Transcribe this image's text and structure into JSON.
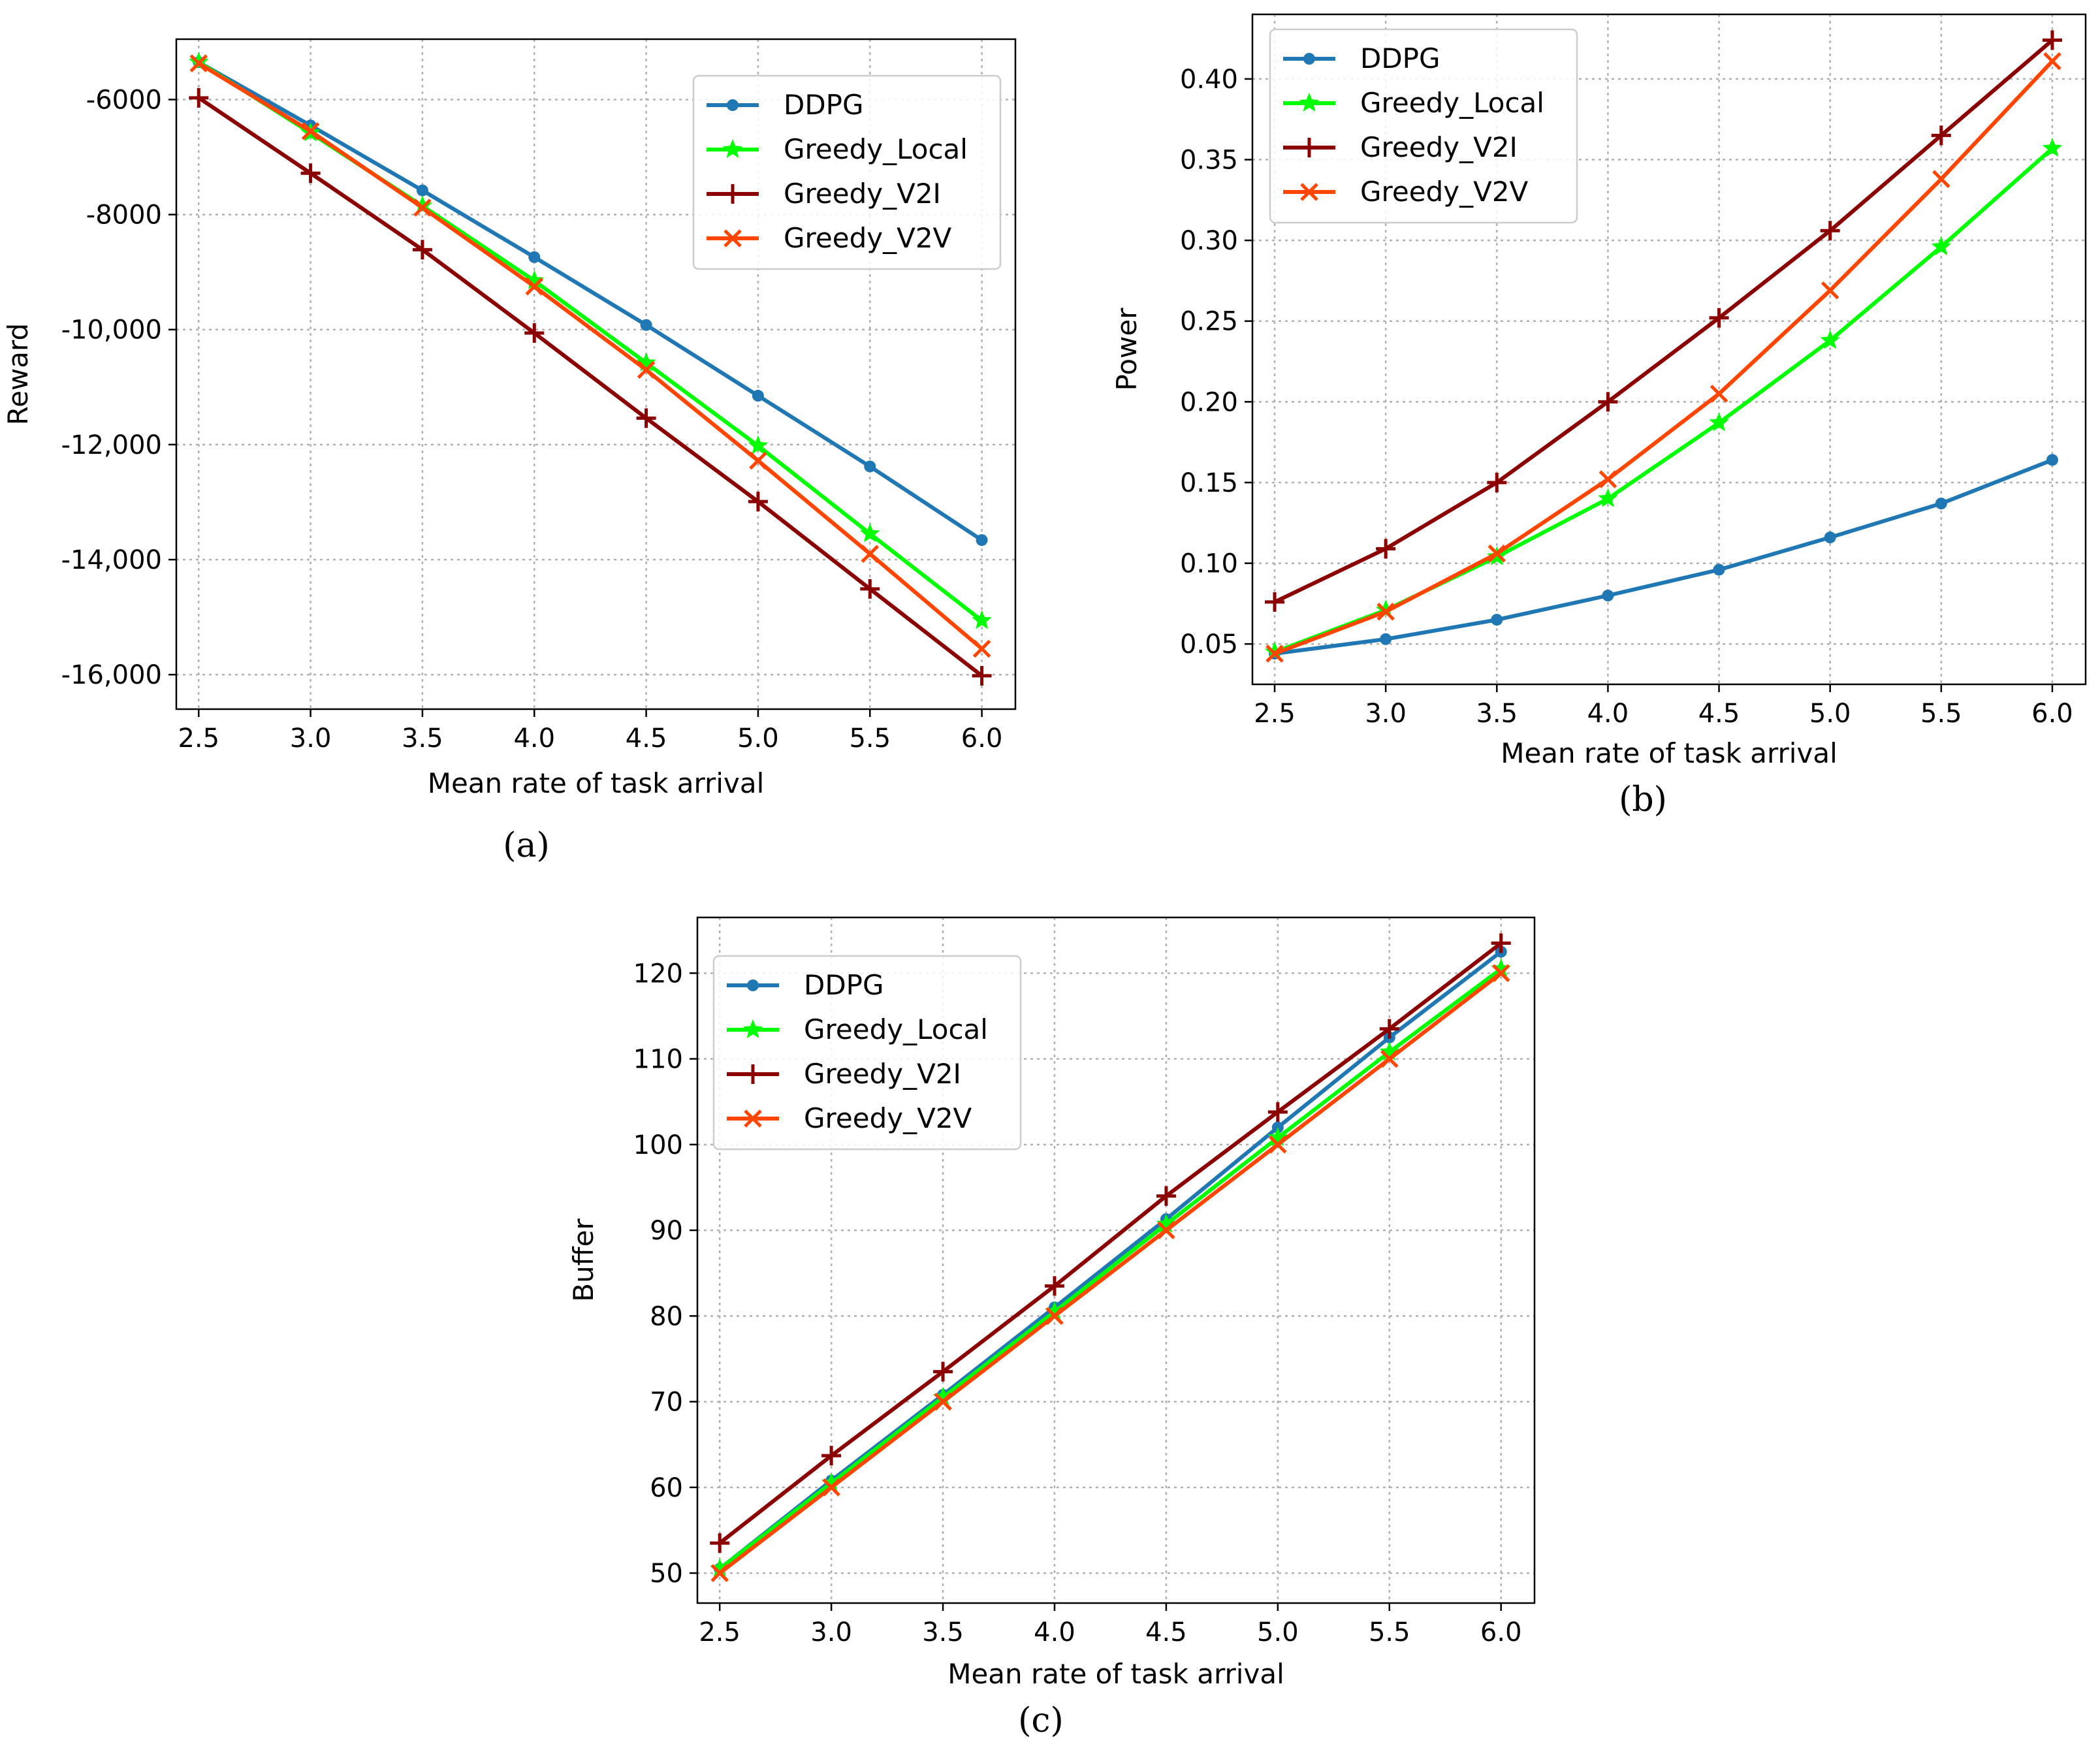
{
  "figure": {
    "panels": [
      {
        "id": "a",
        "caption": "(a)"
      },
      {
        "id": "b",
        "caption": "(b)"
      },
      {
        "id": "c",
        "caption": "(c)"
      }
    ]
  },
  "chart_data": [
    {
      "type": "line",
      "panel": "(a)",
      "title": "",
      "xlabel": "Mean rate of task arrival",
      "ylabel": "Reward",
      "x": [
        2.5,
        3.0,
        3.5,
        4.0,
        4.5,
        5.0,
        5.5,
        6.0
      ],
      "x_tick_labels": [
        "2.5",
        "3.0",
        "3.5",
        "4.0",
        "4.5",
        "5.0",
        "5.5",
        "6.0"
      ],
      "xlim": [
        2.4,
        6.15
      ],
      "ylim": [
        -16600,
        -4950
      ],
      "y_ticks": [
        -16000,
        -14000,
        -12000,
        -10000,
        -8000,
        -6000
      ],
      "y_tick_labels": [
        "-16,000",
        "-14,000",
        "-12,000",
        "-10,000",
        "-8000",
        "-6000"
      ],
      "grid": true,
      "legend_position": "top-right",
      "series": [
        {
          "name": "DDPG",
          "color": "#1f77b4",
          "marker": "dot",
          "values": [
            -5350,
            -6450,
            -7580,
            -8740,
            -9920,
            -11150,
            -12380,
            -13660
          ]
        },
        {
          "name": "Greedy_Local",
          "color": "#00ff00",
          "marker": "star",
          "values": [
            -5350,
            -6580,
            -7850,
            -9150,
            -10580,
            -12020,
            -13550,
            -15060
          ]
        },
        {
          "name": "Greedy_V2I",
          "color": "#8b0000",
          "marker": "plus",
          "values": [
            -5970,
            -7280,
            -8610,
            -10060,
            -11540,
            -12990,
            -14510,
            -16020
          ]
        },
        {
          "name": "Greedy_V2V",
          "color": "#ff4500",
          "marker": "x",
          "values": [
            -5370,
            -6550,
            -7880,
            -9250,
            -10700,
            -12280,
            -13900,
            -15550
          ]
        }
      ]
    },
    {
      "type": "line",
      "panel": "(b)",
      "title": "",
      "xlabel": "Mean rate of task arrival",
      "ylabel": "Power",
      "x": [
        2.5,
        3.0,
        3.5,
        4.0,
        4.5,
        5.0,
        5.5,
        6.0
      ],
      "x_tick_labels": [
        "2.5",
        "3.0",
        "3.5",
        "4.0",
        "4.5",
        "5.0",
        "5.5",
        "6.0"
      ],
      "xlim": [
        2.4,
        6.15
      ],
      "ylim": [
        0.025,
        0.44
      ],
      "y_ticks": [
        0.05,
        0.1,
        0.15,
        0.2,
        0.25,
        0.3,
        0.35,
        0.4
      ],
      "y_tick_labels": [
        "0.05",
        "0.10",
        "0.15",
        "0.20",
        "0.25",
        "0.30",
        "0.35",
        "0.40"
      ],
      "grid": true,
      "legend_position": "top-left",
      "series": [
        {
          "name": "DDPG",
          "color": "#1f77b4",
          "marker": "dot",
          "values": [
            0.044,
            0.053,
            0.065,
            0.08,
            0.096,
            0.116,
            0.137,
            0.164
          ]
        },
        {
          "name": "Greedy_Local",
          "color": "#00ff00",
          "marker": "star",
          "values": [
            0.045,
            0.071,
            0.104,
            0.14,
            0.187,
            0.238,
            0.296,
            0.357
          ]
        },
        {
          "name": "Greedy_V2I",
          "color": "#8b0000",
          "marker": "plus",
          "values": [
            0.076,
            0.109,
            0.15,
            0.2,
            0.252,
            0.306,
            0.365,
            0.424
          ]
        },
        {
          "name": "Greedy_V2V",
          "color": "#ff4500",
          "marker": "x",
          "values": [
            0.044,
            0.07,
            0.106,
            0.152,
            0.205,
            0.269,
            0.338,
            0.411
          ]
        }
      ]
    },
    {
      "type": "line",
      "panel": "(c)",
      "title": "",
      "xlabel": "Mean rate of task arrival",
      "ylabel": "Buffer",
      "x": [
        2.5,
        3.0,
        3.5,
        4.0,
        4.5,
        5.0,
        5.5,
        6.0
      ],
      "x_tick_labels": [
        "2.5",
        "3.0",
        "3.5",
        "4.0",
        "4.5",
        "5.0",
        "5.5",
        "6.0"
      ],
      "xlim": [
        2.4,
        6.15
      ],
      "ylim": [
        46.5,
        126.5
      ],
      "y_ticks": [
        50,
        60,
        70,
        80,
        90,
        100,
        110,
        120
      ],
      "y_tick_labels": [
        "50",
        "60",
        "70",
        "80",
        "90",
        "100",
        "110",
        "120"
      ],
      "grid": true,
      "legend_position": "top-left",
      "series": [
        {
          "name": "DDPG",
          "color": "#1f77b4",
          "marker": "dot",
          "values": [
            50.5,
            60.8,
            70.8,
            81.0,
            91.3,
            102.0,
            112.5,
            122.5
          ]
        },
        {
          "name": "Greedy_Local",
          "color": "#00ff00",
          "marker": "star",
          "values": [
            50.5,
            60.5,
            70.5,
            80.5,
            90.7,
            100.8,
            110.8,
            120.5
          ]
        },
        {
          "name": "Greedy_V2I",
          "color": "#8b0000",
          "marker": "plus",
          "values": [
            53.5,
            63.7,
            73.5,
            83.5,
            94.0,
            103.8,
            113.5,
            123.5
          ]
        },
        {
          "name": "Greedy_V2V",
          "color": "#ff4500",
          "marker": "x",
          "values": [
            50.0,
            60.0,
            70.0,
            80.0,
            90.0,
            100.0,
            110.0,
            120.0
          ]
        }
      ]
    }
  ]
}
